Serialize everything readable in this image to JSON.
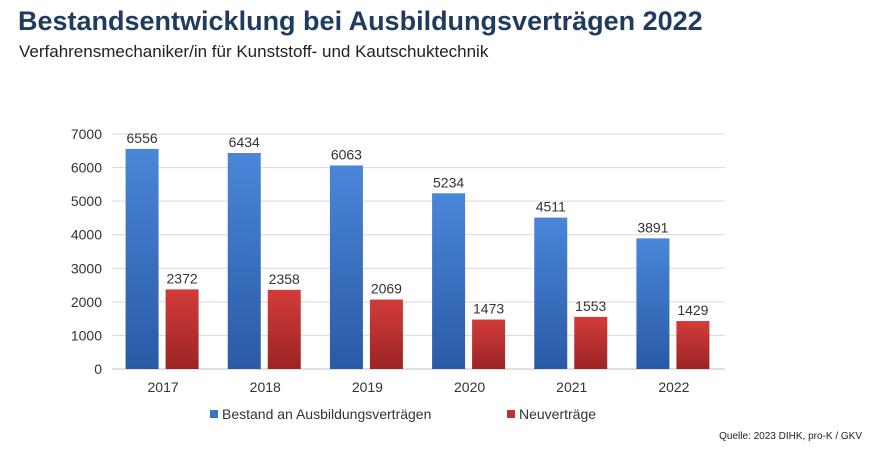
{
  "header": {
    "title": "Bestandsentwicklung bei Ausbildungsverträgen 2022",
    "subtitle": "Verfahrensmechaniker/in für Kunststoff- und Kautschuktechnik"
  },
  "source": "Quelle: 2023 DIHK,  pro-K / GKV",
  "chart_data": {
    "type": "bar",
    "title": "",
    "xlabel": "",
    "ylabel": "",
    "categories": [
      "2017",
      "2018",
      "2019",
      "2020",
      "2021",
      "2022"
    ],
    "ylim": [
      0,
      7000
    ],
    "yticks": [
      0,
      1000,
      2000,
      3000,
      4000,
      5000,
      6000,
      7000
    ],
    "grid": true,
    "legend": "bottom",
    "data_labels": true,
    "series": [
      {
        "name": "Bestand an Ausbildungsverträgen",
        "values": [
          6556,
          6434,
          6063,
          5234,
          4511,
          3891
        ],
        "color": "#3b73c4"
      },
      {
        "name": "Neuverträge",
        "values": [
          2372,
          2358,
          2069,
          1473,
          1553,
          1429
        ],
        "color": "#c0302f"
      }
    ]
  }
}
